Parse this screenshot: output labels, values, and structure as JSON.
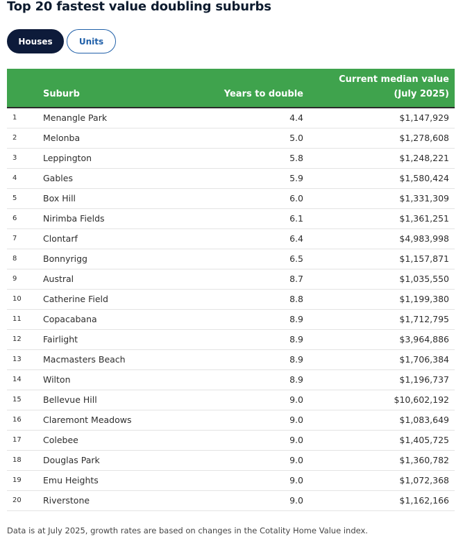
{
  "title": "Top 20 fastest value doubling suburbs",
  "tabs": [
    {
      "label": "Houses",
      "active": true
    },
    {
      "label": "Units",
      "active": false
    }
  ],
  "colors": {
    "header": "#3fa34d",
    "active_tab": "#0d1b3a",
    "inactive_tab": "#1f5fa8"
  },
  "table": {
    "headers": {
      "rank": "",
      "suburb": "Suburb",
      "years": "Years to double",
      "value": "Current median value (July 2025)"
    },
    "rows": [
      {
        "rank": "1",
        "suburb": "Menangle Park",
        "years": "4.4",
        "value": "$1,147,929"
      },
      {
        "rank": "2",
        "suburb": "Melonba",
        "years": "5.0",
        "value": "$1,278,608"
      },
      {
        "rank": "3",
        "suburb": "Leppington",
        "years": "5.8",
        "value": "$1,248,221"
      },
      {
        "rank": "4",
        "suburb": "Gables",
        "years": "5.9",
        "value": "$1,580,424"
      },
      {
        "rank": "5",
        "suburb": "Box Hill",
        "years": "6.0",
        "value": "$1,331,309"
      },
      {
        "rank": "6",
        "suburb": "Nirimba Fields",
        "years": "6.1",
        "value": "$1,361,251"
      },
      {
        "rank": "7",
        "suburb": "Clontarf",
        "years": "6.4",
        "value": "$4,983,998"
      },
      {
        "rank": "8",
        "suburb": "Bonnyrigg",
        "years": "6.5",
        "value": "$1,157,871"
      },
      {
        "rank": "9",
        "suburb": "Austral",
        "years": "8.7",
        "value": "$1,035,550"
      },
      {
        "rank": "10",
        "suburb": "Catherine Field",
        "years": "8.8",
        "value": "$1,199,380"
      },
      {
        "rank": "11",
        "suburb": "Copacabana",
        "years": "8.9",
        "value": "$1,712,795"
      },
      {
        "rank": "12",
        "suburb": "Fairlight",
        "years": "8.9",
        "value": "$3,964,886"
      },
      {
        "rank": "13",
        "suburb": "Macmasters Beach",
        "years": "8.9",
        "value": "$1,706,384"
      },
      {
        "rank": "14",
        "suburb": "Wilton",
        "years": "8.9",
        "value": "$1,196,737"
      },
      {
        "rank": "15",
        "suburb": "Bellevue Hill",
        "years": "9.0",
        "value": "$10,602,192"
      },
      {
        "rank": "16",
        "suburb": "Claremont Meadows",
        "years": "9.0",
        "value": "$1,083,649"
      },
      {
        "rank": "17",
        "suburb": "Colebee",
        "years": "9.0",
        "value": "$1,405,725"
      },
      {
        "rank": "18",
        "suburb": "Douglas Park",
        "years": "9.0",
        "value": "$1,360,782"
      },
      {
        "rank": "19",
        "suburb": "Emu Heights",
        "years": "9.0",
        "value": "$1,072,368"
      },
      {
        "rank": "20",
        "suburb": "Riverstone",
        "years": "9.0",
        "value": "$1,162,166"
      }
    ]
  },
  "footnote": "Data is at July 2025, growth rates are based on changes in the Cotality Home Value index."
}
